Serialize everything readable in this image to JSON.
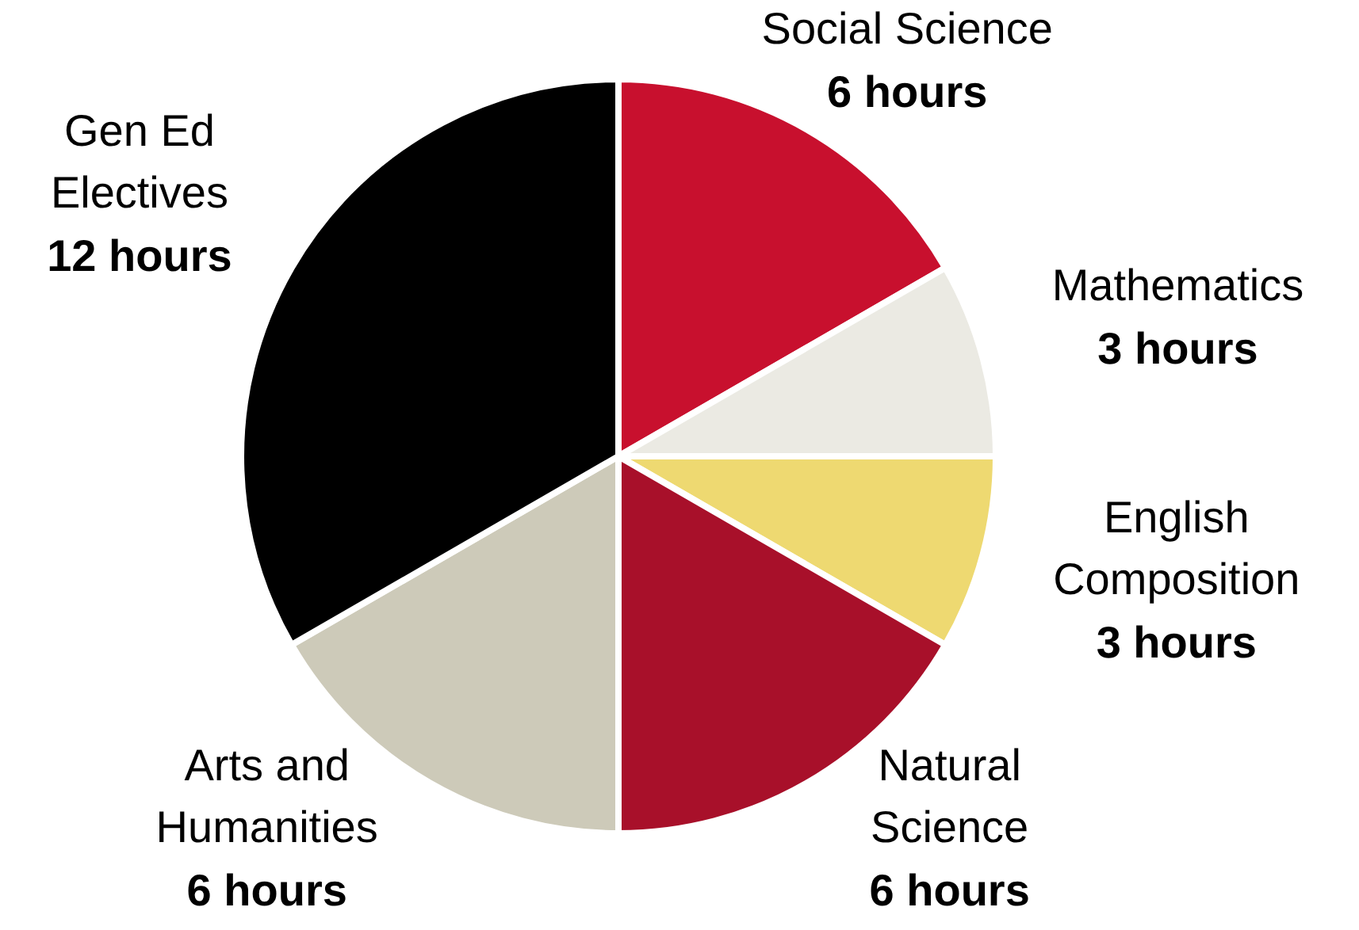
{
  "chart_data": {
    "type": "pie",
    "categories": [
      "Social Science",
      "Mathematics",
      "English Composition",
      "Natural Science",
      "Arts and Humanities",
      "Gen Ed Electives"
    ],
    "values": [
      6,
      3,
      3,
      6,
      6,
      12
    ],
    "colors": [
      "#c8102e",
      "#ebeae3",
      "#eed971",
      "#a8102a",
      "#cdcab9",
      "#000000"
    ],
    "value_labels": [
      "6 hours",
      "3 hours",
      "3 hours",
      "6 hours",
      "6 hours",
      "12 hours"
    ]
  }
}
